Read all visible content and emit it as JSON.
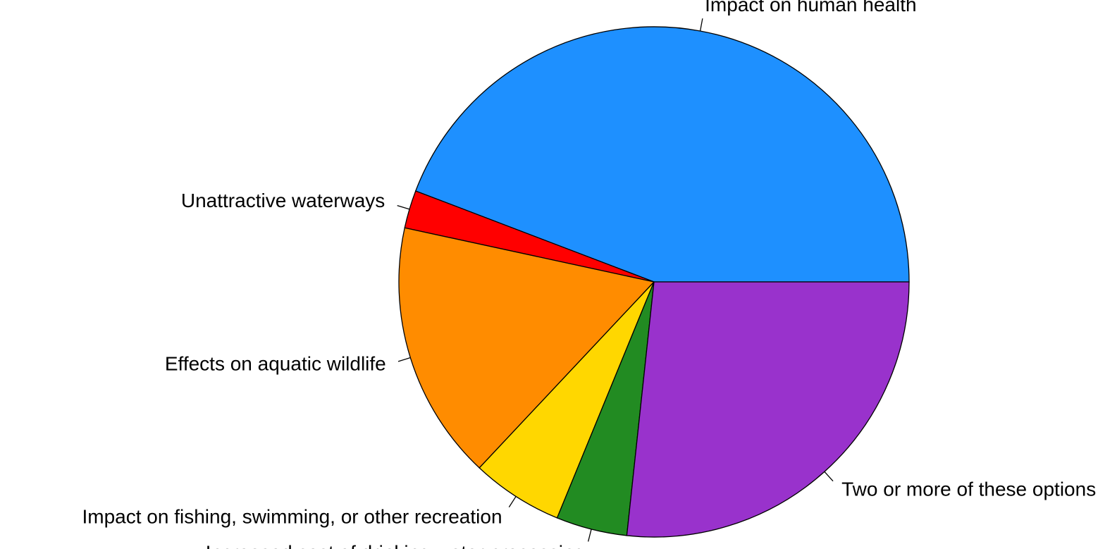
{
  "chart_data": {
    "type": "pie",
    "title": "",
    "slices": [
      {
        "label": "Impact on human health",
        "value": 44.2,
        "color": "#1E90FF"
      },
      {
        "label": "Unattractive waterways",
        "value": 2.4,
        "color": "#FF0000"
      },
      {
        "label": "Effects on aquatic wildlife",
        "value": 16.4,
        "color": "#FF8C00"
      },
      {
        "label": "Impact on fishing, swimming, or other recreation",
        "value": 5.8,
        "color": "#FFD700"
      },
      {
        "label": "Increased cost of drinking water processing",
        "value": 4.5,
        "color": "#228B22"
      },
      {
        "label": "Two or more of these options",
        "value": 26.7,
        "color": "#9932CC"
      }
    ],
    "start_angle_deg": 0,
    "direction": "counterclockwise",
    "legend": "none"
  }
}
